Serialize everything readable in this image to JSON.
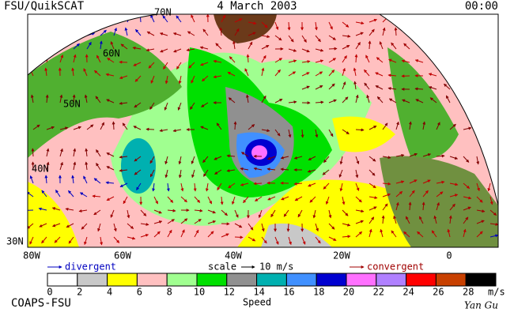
{
  "header": {
    "product": "FSU/QuikSCAT",
    "date": "4 March 2003",
    "time": "00:00"
  },
  "map": {
    "lat_labels": [
      "70N",
      "60N",
      "50N",
      "40N",
      "30N"
    ],
    "lon_labels": [
      "80W",
      "60W",
      "40W",
      "20W",
      "0"
    ]
  },
  "legend": {
    "divergent": "divergent",
    "scale": "scale",
    "scale_value": "10 m/s",
    "convergent": "convergent"
  },
  "colorbar": {
    "ticks": [
      0,
      2,
      4,
      6,
      8,
      10,
      12,
      14,
      16,
      18,
      20,
      22,
      24,
      26,
      28
    ],
    "unit": "m/s",
    "label": "Speed",
    "colors": [
      "#ffffff",
      "#c8c8c8",
      "#ffff00",
      "#ffc0c0",
      "#a0ff90",
      "#00e000",
      "#909090",
      "#00b0b0",
      "#4090ff",
      "#0000d0",
      "#ff70ff",
      "#b080ff",
      "#ff0000",
      "#c84000",
      "#000000"
    ]
  },
  "footer": {
    "credit": "COAPS-FSU",
    "author": "Yan Gu"
  }
}
